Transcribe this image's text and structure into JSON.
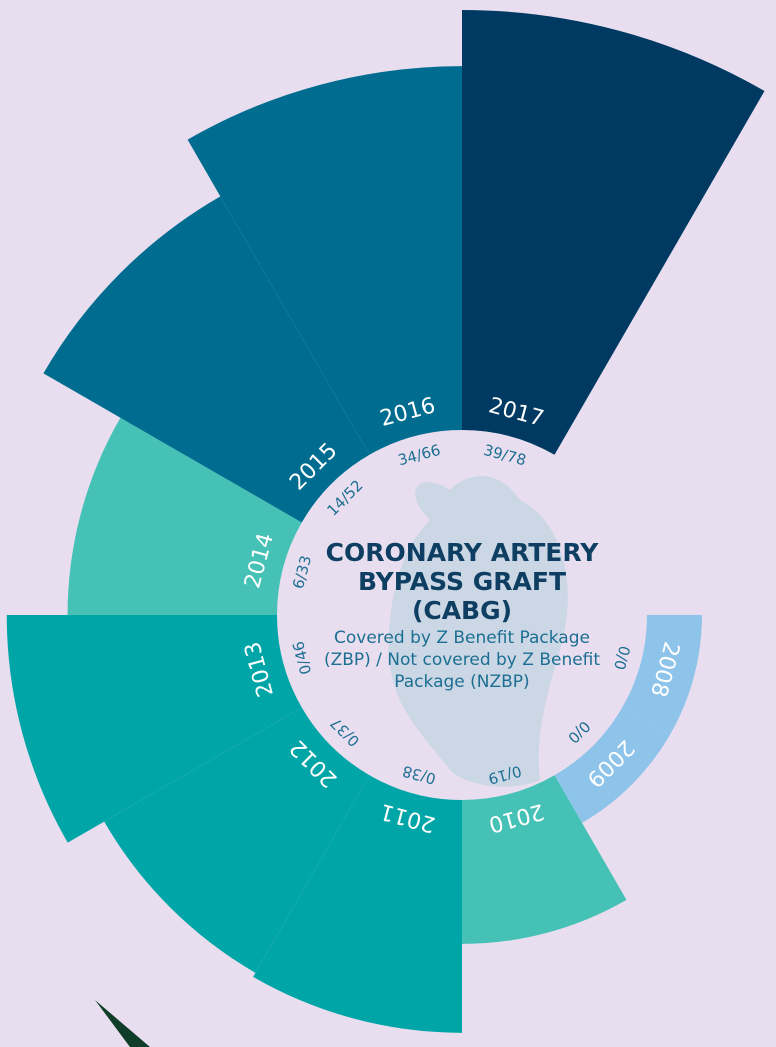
{
  "chart_data": {
    "type": "radial-bar",
    "title": "CORONARY ARTERY BYPASS GRAFT (CABG)",
    "subtitle": "Covered by Z Benefit Package (ZBP) / Not covered by Z Benefit Package (NZBP)",
    "categories": [
      "2008",
      "2009",
      "2010",
      "2011",
      "2012",
      "2013",
      "2014",
      "2015",
      "2016",
      "2017"
    ],
    "covered": [
      0,
      0,
      0,
      0,
      0,
      0,
      6,
      14,
      34,
      39
    ],
    "not_covered": [
      0,
      0,
      19,
      38,
      37,
      46,
      33,
      52,
      66,
      78
    ],
    "value_labels": [
      "0/0",
      "0/0",
      "0/19",
      "0/38",
      "0/37",
      "0/46",
      "6/33",
      "14/52",
      "34/66",
      "39/78"
    ],
    "colors": [
      "#8fc4ea",
      "#8fc4ea",
      "#45c1b5",
      "#00a5a8",
      "#00a5a8",
      "#00a5a8",
      "#45c1b5",
      "#006d90",
      "#006d90",
      "#003a63"
    ]
  }
}
